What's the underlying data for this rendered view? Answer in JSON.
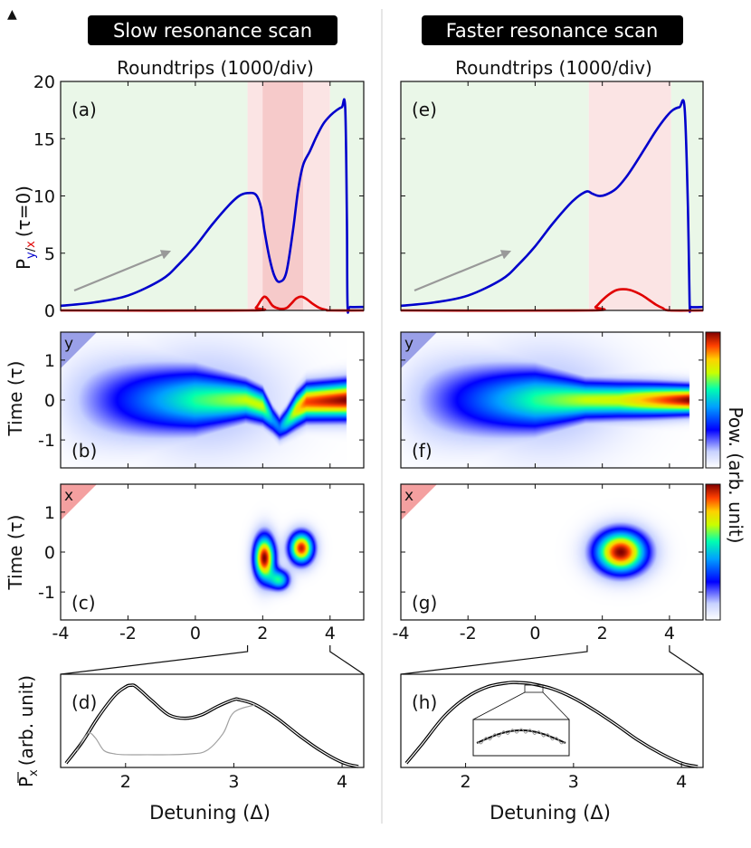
{
  "figure": {
    "corner_marker": "▲",
    "left_header": "Slow resonance scan",
    "right_header": "Faster resonance scan",
    "top_axis_label": "Roundtrips (1000/div)",
    "colorbar_label": "Pow. (arb. unit)",
    "colors": {
      "y_component": "#0000cc",
      "x_component": "#e00000",
      "green_region": "#eaf7e8",
      "pink_region": "#fbe4e4",
      "pink_region_strong": "#f6caca",
      "gray_curve": "#a0a0a0",
      "header_bg": "#000000",
      "header_text": "#ffffff"
    }
  },
  "chart_data": [
    {
      "id": "a",
      "panel_label": "(a)",
      "type": "line",
      "ylabel_prefix": "P",
      "ylabel_sub_y": "y",
      "ylabel_sub_slash": "/",
      "ylabel_sub_x": "x",
      "ylabel_suffix": "(τ=0)",
      "xlim": [
        -4,
        5
      ],
      "ylim": [
        0,
        20
      ],
      "yticks": [
        0,
        5,
        10,
        15,
        20
      ],
      "background_regions": [
        {
          "from": -4,
          "to": 1.55,
          "kind": "green"
        },
        {
          "from": 1.55,
          "to": 4.0,
          "kind": "pink"
        },
        {
          "from": 2.0,
          "to": 3.2,
          "kind": "pink_strong"
        },
        {
          "from": 4.0,
          "to": 5.0,
          "kind": "green"
        }
      ],
      "series": [
        {
          "name": "y",
          "color": "#0000cc",
          "x": [
            -4,
            -3,
            -2,
            -1,
            -0.5,
            0,
            0.5,
            1,
            1.3,
            1.55,
            1.8,
            1.95,
            2.05,
            2.2,
            2.35,
            2.5,
            2.7,
            2.9,
            3.05,
            3.2,
            3.4,
            3.6,
            3.8,
            4.0,
            4.2,
            4.35,
            4.45,
            4.5,
            4.52,
            4.6,
            5
          ],
          "y": [
            0.4,
            0.7,
            1.3,
            2.7,
            4.0,
            5.6,
            7.5,
            9.2,
            10.0,
            10.25,
            10.1,
            9.0,
            7.0,
            4.6,
            3.0,
            2.5,
            3.3,
            7.0,
            10.5,
            12.7,
            13.9,
            15.2,
            16.3,
            17.0,
            17.5,
            17.75,
            17.7,
            8.0,
            0.4,
            0.3,
            0.3
          ]
        },
        {
          "name": "x",
          "color": "#e00000",
          "x": [
            -4,
            1.6,
            1.8,
            1.95,
            2.05,
            2.15,
            2.3,
            2.5,
            2.7,
            2.85,
            3.0,
            3.15,
            3.3,
            3.5,
            3.7,
            3.9,
            4.0,
            5
          ],
          "y": [
            0,
            0,
            0.25,
            0.9,
            1.2,
            1.0,
            0.4,
            0.15,
            0.2,
            0.6,
            1.05,
            1.2,
            1.0,
            0.55,
            0.2,
            0.04,
            0,
            0
          ]
        }
      ],
      "annotation": "arrow"
    },
    {
      "id": "e",
      "panel_label": "(e)",
      "type": "line",
      "xlim": [
        -4,
        5
      ],
      "ylim": [
        0,
        20
      ],
      "yticks": [
        0,
        5,
        10,
        15,
        20
      ],
      "background_regions": [
        {
          "from": -4,
          "to": 1.6,
          "kind": "green"
        },
        {
          "from": 1.6,
          "to": 4.05,
          "kind": "pink"
        },
        {
          "from": 4.05,
          "to": 5.0,
          "kind": "green"
        }
      ],
      "series": [
        {
          "name": "y",
          "color": "#0000cc",
          "x": [
            -4,
            -3,
            -2,
            -1,
            -0.5,
            0,
            0.5,
            1,
            1.3,
            1.55,
            1.7,
            1.9,
            2.1,
            2.4,
            2.7,
            3.0,
            3.3,
            3.6,
            3.9,
            4.1,
            4.3,
            4.45,
            4.55,
            4.6,
            4.65,
            5
          ],
          "y": [
            0.4,
            0.7,
            1.3,
            2.7,
            4.0,
            5.6,
            7.5,
            9.2,
            10.0,
            10.4,
            10.2,
            10.0,
            10.1,
            10.6,
            11.6,
            12.9,
            14.3,
            15.7,
            16.9,
            17.5,
            17.75,
            17.7,
            9.0,
            0.6,
            0.3,
            0.3
          ]
        },
        {
          "name": "x",
          "color": "#e00000",
          "x": [
            -4,
            1.6,
            1.8,
            2.0,
            2.2,
            2.4,
            2.6,
            2.8,
            3.0,
            3.2,
            3.4,
            3.6,
            3.8,
            4.0,
            5
          ],
          "y": [
            0,
            0,
            0.3,
            0.9,
            1.4,
            1.75,
            1.85,
            1.8,
            1.6,
            1.3,
            0.9,
            0.5,
            0.2,
            0,
            0
          ]
        }
      ],
      "annotation": "arrow"
    },
    {
      "id": "b",
      "panel_label": "(b)",
      "type": "heatmap",
      "component": "y",
      "corner_label": "y",
      "ylabel": "Time (τ)",
      "xlim": [
        -4,
        5
      ],
      "ylim": [
        -1.7,
        1.7
      ],
      "yticks": [
        -1,
        0,
        1
      ],
      "data_xmax": 4.5,
      "ridge_x": [
        -4,
        0,
        1.5,
        2.0,
        2.3,
        2.5,
        2.7,
        3.0,
        3.3,
        4.5
      ],
      "ridge_center": [
        0,
        0,
        0,
        -0.15,
        -0.5,
        -0.7,
        -0.55,
        -0.25,
        -0.05,
        0
      ],
      "ridge_width": [
        1.1,
        0.75,
        0.45,
        0.4,
        0.32,
        0.3,
        0.32,
        0.4,
        0.42,
        0.44
      ],
      "ridge_peak": [
        0.05,
        0.6,
        0.7,
        0.7,
        0.45,
        0.4,
        0.55,
        0.75,
        0.9,
        1.0
      ]
    },
    {
      "id": "f",
      "panel_label": "(f)",
      "type": "heatmap",
      "component": "y",
      "corner_label": "y",
      "xlim": [
        -4,
        5
      ],
      "ylim": [
        -1.7,
        1.7
      ],
      "yticks": [
        -1,
        0,
        1
      ],
      "data_xmax": 4.6,
      "ridge_x": [
        -4,
        0,
        1.5,
        2.5,
        3.5,
        4.6
      ],
      "ridge_center": [
        0,
        0,
        0,
        0,
        0,
        0
      ],
      "ridge_width": [
        1.1,
        0.75,
        0.45,
        0.42,
        0.38,
        0.33
      ],
      "ridge_peak": [
        0.05,
        0.6,
        0.7,
        0.72,
        0.85,
        1.0
      ]
    },
    {
      "id": "c",
      "panel_label": "(c)",
      "type": "heatmap",
      "component": "x",
      "corner_label": "x",
      "ylabel": "Time (τ)",
      "xlim": [
        -4,
        5
      ],
      "ylim": [
        -1.7,
        1.7
      ],
      "xticks": [
        -4,
        -2,
        0,
        2,
        4
      ],
      "yticks": [
        -1,
        0,
        1
      ],
      "blobs": [
        {
          "x0": 2.05,
          "y0": -0.15,
          "sx": 0.3,
          "sy": 0.55,
          "amp": 1.0
        },
        {
          "x0": 2.5,
          "y0": -0.7,
          "sx": 0.3,
          "sy": 0.25,
          "amp": 0.55
        },
        {
          "x0": 3.15,
          "y0": 0.1,
          "sx": 0.35,
          "sy": 0.38,
          "amp": 0.95
        }
      ]
    },
    {
      "id": "g",
      "panel_label": "(g)",
      "type": "heatmap",
      "component": "x",
      "corner_label": "x",
      "xlim": [
        -4,
        5
      ],
      "ylim": [
        -1.7,
        1.7
      ],
      "xticks": [
        -4,
        -2,
        0,
        2,
        4
      ],
      "yticks": [
        -1,
        0,
        1
      ],
      "blobs": [
        {
          "x0": 2.55,
          "y0": 0,
          "sx": 0.75,
          "sy": 0.52,
          "amp": 1.0
        }
      ]
    },
    {
      "id": "d",
      "panel_label": "(d)",
      "type": "line",
      "ylabel_prefix": "P",
      "ylabel_sub": "x",
      "ylabel_suffix": "(arb. unit)",
      "xlabel": "Detuning (Δ)",
      "xlim": [
        1.4,
        4.2
      ],
      "ylim": [
        0,
        1.1
      ],
      "xticks": [
        2,
        3,
        4
      ],
      "zoom_from": [
        1.55,
        4.0
      ],
      "series": [
        {
          "name": "simulation",
          "color": "#000000",
          "x": [
            1.45,
            1.6,
            1.75,
            1.9,
            2.0,
            2.05,
            2.1,
            2.25,
            2.4,
            2.55,
            2.7,
            2.85,
            3.0,
            3.05,
            3.2,
            3.4,
            3.6,
            3.8,
            4.0,
            4.15
          ],
          "y": [
            0.05,
            0.3,
            0.6,
            0.85,
            0.95,
            0.97,
            0.95,
            0.78,
            0.62,
            0.58,
            0.62,
            0.72,
            0.8,
            0.8,
            0.74,
            0.58,
            0.38,
            0.2,
            0.06,
            0.01
          ]
        },
        {
          "name": "detail",
          "color": "#a0a0a0",
          "x": [
            1.55,
            1.65,
            1.72,
            1.8,
            1.9,
            2.0,
            2.2,
            2.4,
            2.6,
            2.75,
            2.9,
            3.0,
            3.2
          ],
          "y": [
            0.2,
            0.4,
            0.35,
            0.2,
            0.16,
            0.15,
            0.15,
            0.15,
            0.16,
            0.2,
            0.4,
            0.65,
            0.74
          ]
        }
      ]
    },
    {
      "id": "h",
      "panel_label": "(h)",
      "type": "line",
      "xlabel": "Detuning (Δ)",
      "xlim": [
        1.4,
        4.2
      ],
      "ylim": [
        0,
        1.1
      ],
      "xticks": [
        2,
        3,
        4
      ],
      "zoom_from": [
        1.55,
        4.0
      ],
      "series": [
        {
          "name": "simulation",
          "color": "#000000",
          "x": [
            1.45,
            1.6,
            1.8,
            2.0,
            2.2,
            2.4,
            2.5,
            2.6,
            2.8,
            3.0,
            3.2,
            3.4,
            3.6,
            3.8,
            4.0,
            4.15
          ],
          "y": [
            0.05,
            0.28,
            0.6,
            0.82,
            0.95,
            1.0,
            1.0,
            0.99,
            0.93,
            0.82,
            0.67,
            0.5,
            0.32,
            0.17,
            0.05,
            0.01
          ]
        }
      ],
      "inset": true
    }
  ]
}
